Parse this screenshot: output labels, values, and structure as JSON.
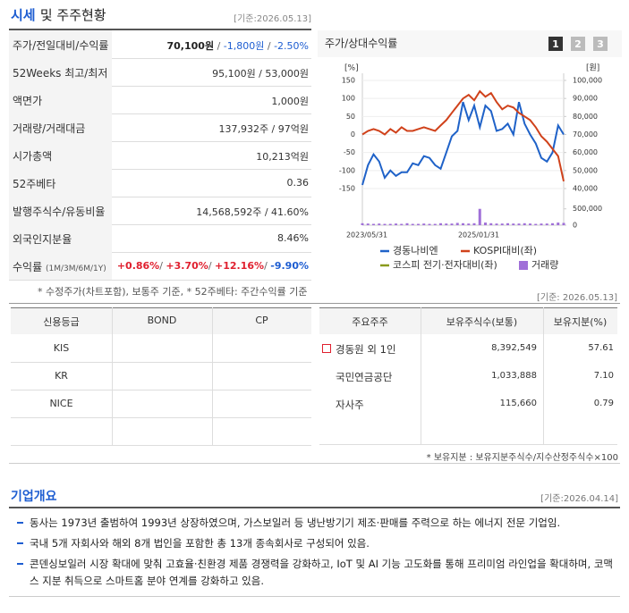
{
  "quote": {
    "title_highlight": "시세",
    "title_rest": "및 주주현황",
    "date": "[기준:2026.05.13]",
    "rows": [
      {
        "label": "주가/전일대비/수익률",
        "parts": [
          {
            "text": "70,100원",
            "color": "#222222",
            "bold": true
          },
          {
            "text": " / ",
            "color": "#666666"
          },
          {
            "text": "-1,800원",
            "color": "#1d5dd1"
          },
          {
            "text": " / ",
            "color": "#666666"
          },
          {
            "text": "-2.50%",
            "color": "#1d5dd1"
          }
        ]
      },
      {
        "label": "52Weeks 최고/최저",
        "parts": [
          {
            "text": "95,100원 / 53,000원",
            "color": "#333333"
          }
        ]
      },
      {
        "label": "액면가",
        "parts": [
          {
            "text": "1,000원",
            "color": "#333333"
          }
        ]
      },
      {
        "label": "거래량/거래대금",
        "parts": [
          {
            "text": "137,932주 / 97억원",
            "color": "#333333"
          }
        ]
      },
      {
        "label": "시가총액",
        "parts": [
          {
            "text": "10,213억원",
            "color": "#333333"
          }
        ]
      },
      {
        "label": "52주베타",
        "parts": [
          {
            "text": "0.36",
            "color": "#333333"
          }
        ]
      },
      {
        "label": "발행주식수/유동비율",
        "parts": [
          {
            "text": "14,568,592주 / 41.60%",
            "color": "#333333"
          }
        ]
      },
      {
        "label": "외국인지분율",
        "parts": [
          {
            "text": "8.46%",
            "color": "#333333"
          }
        ]
      },
      {
        "label": "수익률",
        "label_note": "(1M/3M/6M/1Y)",
        "parts": [
          {
            "text": "+0.86%",
            "color": "#e0202f",
            "bold": true
          },
          {
            "text": "/ ",
            "color": "#666666"
          },
          {
            "text": "+3.70%",
            "color": "#e0202f",
            "bold": true
          },
          {
            "text": "/ ",
            "color": "#666666"
          },
          {
            "text": "+12.16%",
            "color": "#e0202f",
            "bold": true
          },
          {
            "text": "/ ",
            "color": "#666666"
          },
          {
            "text": "-9.90%",
            "color": "#1d5dd1",
            "bold": true
          }
        ]
      }
    ],
    "note": "* 수정주가(차트포함), 보통주 기준, * 52주베타: 주간수익률 기준"
  },
  "chart_data": {
    "type": "line",
    "title": "주가/상대수익률",
    "buttons": [
      "1",
      "2",
      "3"
    ],
    "active_button": 0,
    "ylabel": "[%]",
    "y2label": "[원]",
    "categories": [
      "2023/05/31",
      null,
      null,
      null,
      null,
      null,
      null,
      null,
      null,
      null,
      null,
      null,
      null,
      null,
      null,
      null,
      null,
      null,
      null,
      null,
      "2025/01/31",
      null,
      null,
      null,
      null,
      null,
      null,
      null,
      null,
      null,
      null,
      null,
      null,
      null,
      null,
      null,
      null
    ],
    "ylim": [
      -150,
      150
    ],
    "yticks": [
      -150,
      -100,
      -50,
      0,
      50,
      100,
      150
    ],
    "y2lim": [
      40000,
      100000
    ],
    "y2ticks": [
      {
        "value": 40000,
        "label": "40,000"
      },
      {
        "value": 50000,
        "label": "50,000"
      },
      {
        "value": 60000,
        "label": "60,000"
      },
      {
        "value": 70000,
        "label": "70,000"
      },
      {
        "value": 80000,
        "label": "80,000"
      },
      {
        "value": 90000,
        "label": "90,000"
      },
      {
        "value": 100000,
        "label": "100,000"
      }
    ],
    "y3lim": [
      0,
      520000
    ],
    "y3ticks": [
      0,
      {
        "value": 500000,
        "label": "500,000"
      }
    ],
    "series": [
      {
        "name": "경동나비엔",
        "color": "#1f62c8",
        "axis": "y2",
        "values": [
          42000,
          53000,
          59000,
          55000,
          46000,
          50000,
          47000,
          49000,
          49000,
          54000,
          53000,
          58000,
          57000,
          53000,
          51000,
          60000,
          69000,
          72000,
          88000,
          78000,
          86000,
          74000,
          86000,
          83000,
          72000,
          73000,
          76000,
          70000,
          88000,
          76000,
          70000,
          65000,
          57000,
          55000,
          60000,
          75000,
          70000
        ]
      },
      {
        "name": "KOSPI대비(좌)",
        "color": "#d0421b",
        "values": [
          0,
          10,
          15,
          10,
          0,
          15,
          5,
          20,
          10,
          10,
          15,
          20,
          15,
          10,
          25,
          40,
          60,
          80,
          100,
          110,
          95,
          120,
          105,
          115,
          90,
          70,
          80,
          75,
          60,
          50,
          40,
          20,
          -5,
          -20,
          -40,
          -60,
          -130
        ]
      },
      {
        "name": "코스피 전기·전자대비(좌)",
        "color": "#8a9a1c",
        "values": [
          null,
          null,
          null,
          null,
          null,
          null,
          null,
          null,
          null,
          null,
          null,
          null,
          null,
          null,
          null,
          null,
          null,
          null,
          null,
          null,
          null,
          null,
          null,
          null,
          null,
          null,
          null,
          null,
          null,
          null,
          null,
          null,
          null,
          null,
          null,
          null,
          null
        ]
      },
      {
        "name": "거래량",
        "color": "#a070d8",
        "type": "bar",
        "axis": "y3",
        "values": [
          60000,
          50000,
          40000,
          50000,
          40000,
          40000,
          50000,
          40000,
          60000,
          40000,
          40000,
          50000,
          40000,
          40000,
          60000,
          50000,
          50000,
          70000,
          60000,
          50000,
          60000,
          500000,
          80000,
          60000,
          50000,
          50000,
          60000,
          50000,
          50000,
          60000,
          50000,
          40000,
          50000,
          50000,
          60000,
          80000,
          70000
        ]
      }
    ]
  },
  "credit": {
    "header": [
      "신용등급",
      "BOND",
      "CP"
    ],
    "rows": [
      [
        "KIS",
        "",
        ""
      ],
      [
        "KR",
        "",
        ""
      ],
      [
        "NICE",
        "",
        ""
      ],
      [
        "",
        "",
        ""
      ]
    ]
  },
  "holders": {
    "date": "[기준: 2026.05.13]",
    "header": [
      "주요주주",
      "보유주식수(보통)",
      "보유지분(%)"
    ],
    "rows": [
      [
        "경동원 외 1인",
        "8,392,549",
        "57.61"
      ],
      [
        "국민연금공단",
        "1,033,888",
        "7.10"
      ],
      [
        "자사주",
        "115,660",
        "0.79"
      ]
    ],
    "note": "* 보유지분 : 보유지분주식수/지수산정주식수×100"
  },
  "overview": {
    "title": "기업개요",
    "date": "[기준:2026.04.14]",
    "bullets": [
      "동사는 1973년 출범하여 1993년 상장하였으며, 가스보일러 등 냉난방기기 제조·판매를 주력으로 하는 에너지 전문 기업임.",
      "국내 5개 자회사와 해외 8개 법인을 포함한 총 13개 종속회사로 구성되어 있음.",
      "콘덴싱보일러 시장 확대에 맞춰 고효율·친환경 제품 경쟁력을 강화하고, IoT 및 AI 기능 고도화를 통해 프리미엄 라인업을 확대하며, 코맥스 지분 취득으로 스마트홈 분야 연계를 강화하고 있음."
    ]
  }
}
